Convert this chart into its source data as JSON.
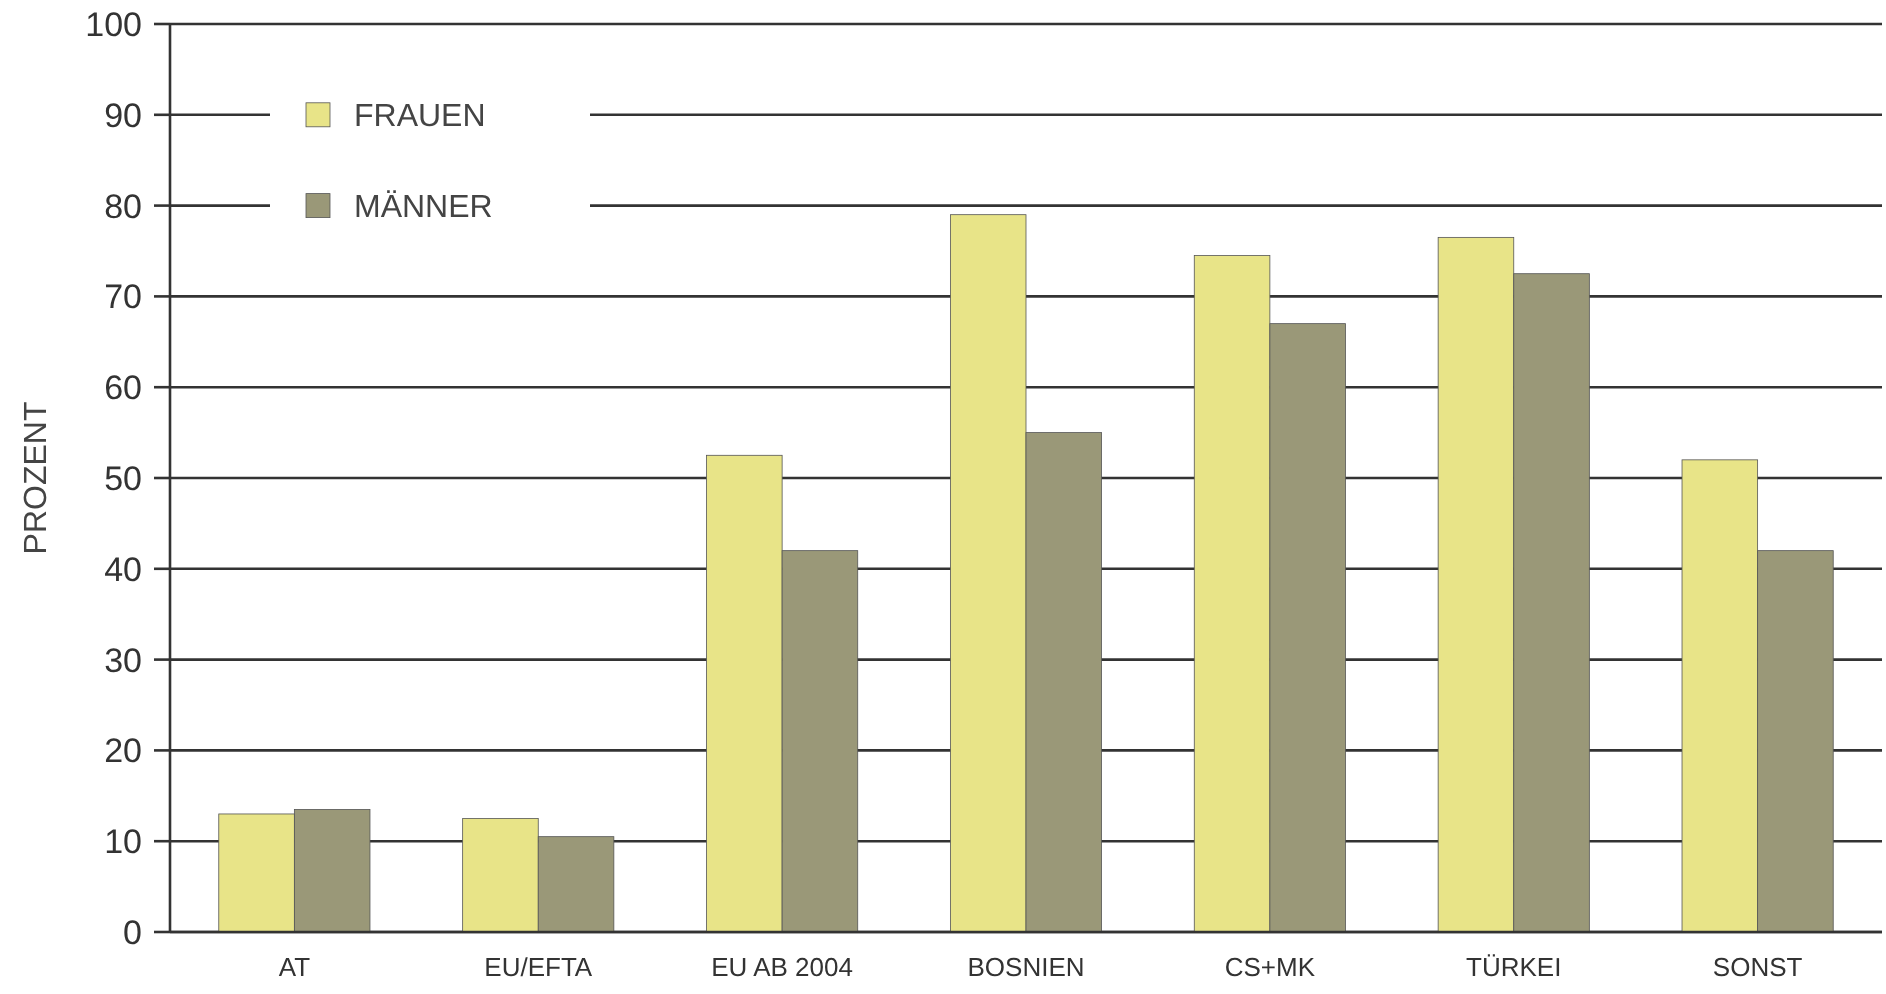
{
  "chart_data": {
    "type": "bar",
    "ylabel": "PROZENT",
    "categories": [
      "AT",
      "EU/EFTA",
      "EU AB 2004",
      "BOSNIEN",
      "CS+MK",
      "TÜRKEI",
      "SONST"
    ],
    "series": [
      {
        "name": "FRAUEN",
        "color": "#e8e488",
        "values": [
          13,
          12.5,
          52.5,
          79,
          74.5,
          76.5,
          52
        ]
      },
      {
        "name": "MÄNNER",
        "color": "#9a9878",
        "values": [
          13.5,
          10.5,
          42,
          55,
          67,
          72.5,
          42
        ]
      }
    ],
    "ylim": [
      0,
      100
    ],
    "yticks": [
      0,
      10,
      20,
      30,
      40,
      50,
      60,
      70,
      80,
      90,
      100
    ],
    "grid": "y",
    "legend": "top left"
  }
}
